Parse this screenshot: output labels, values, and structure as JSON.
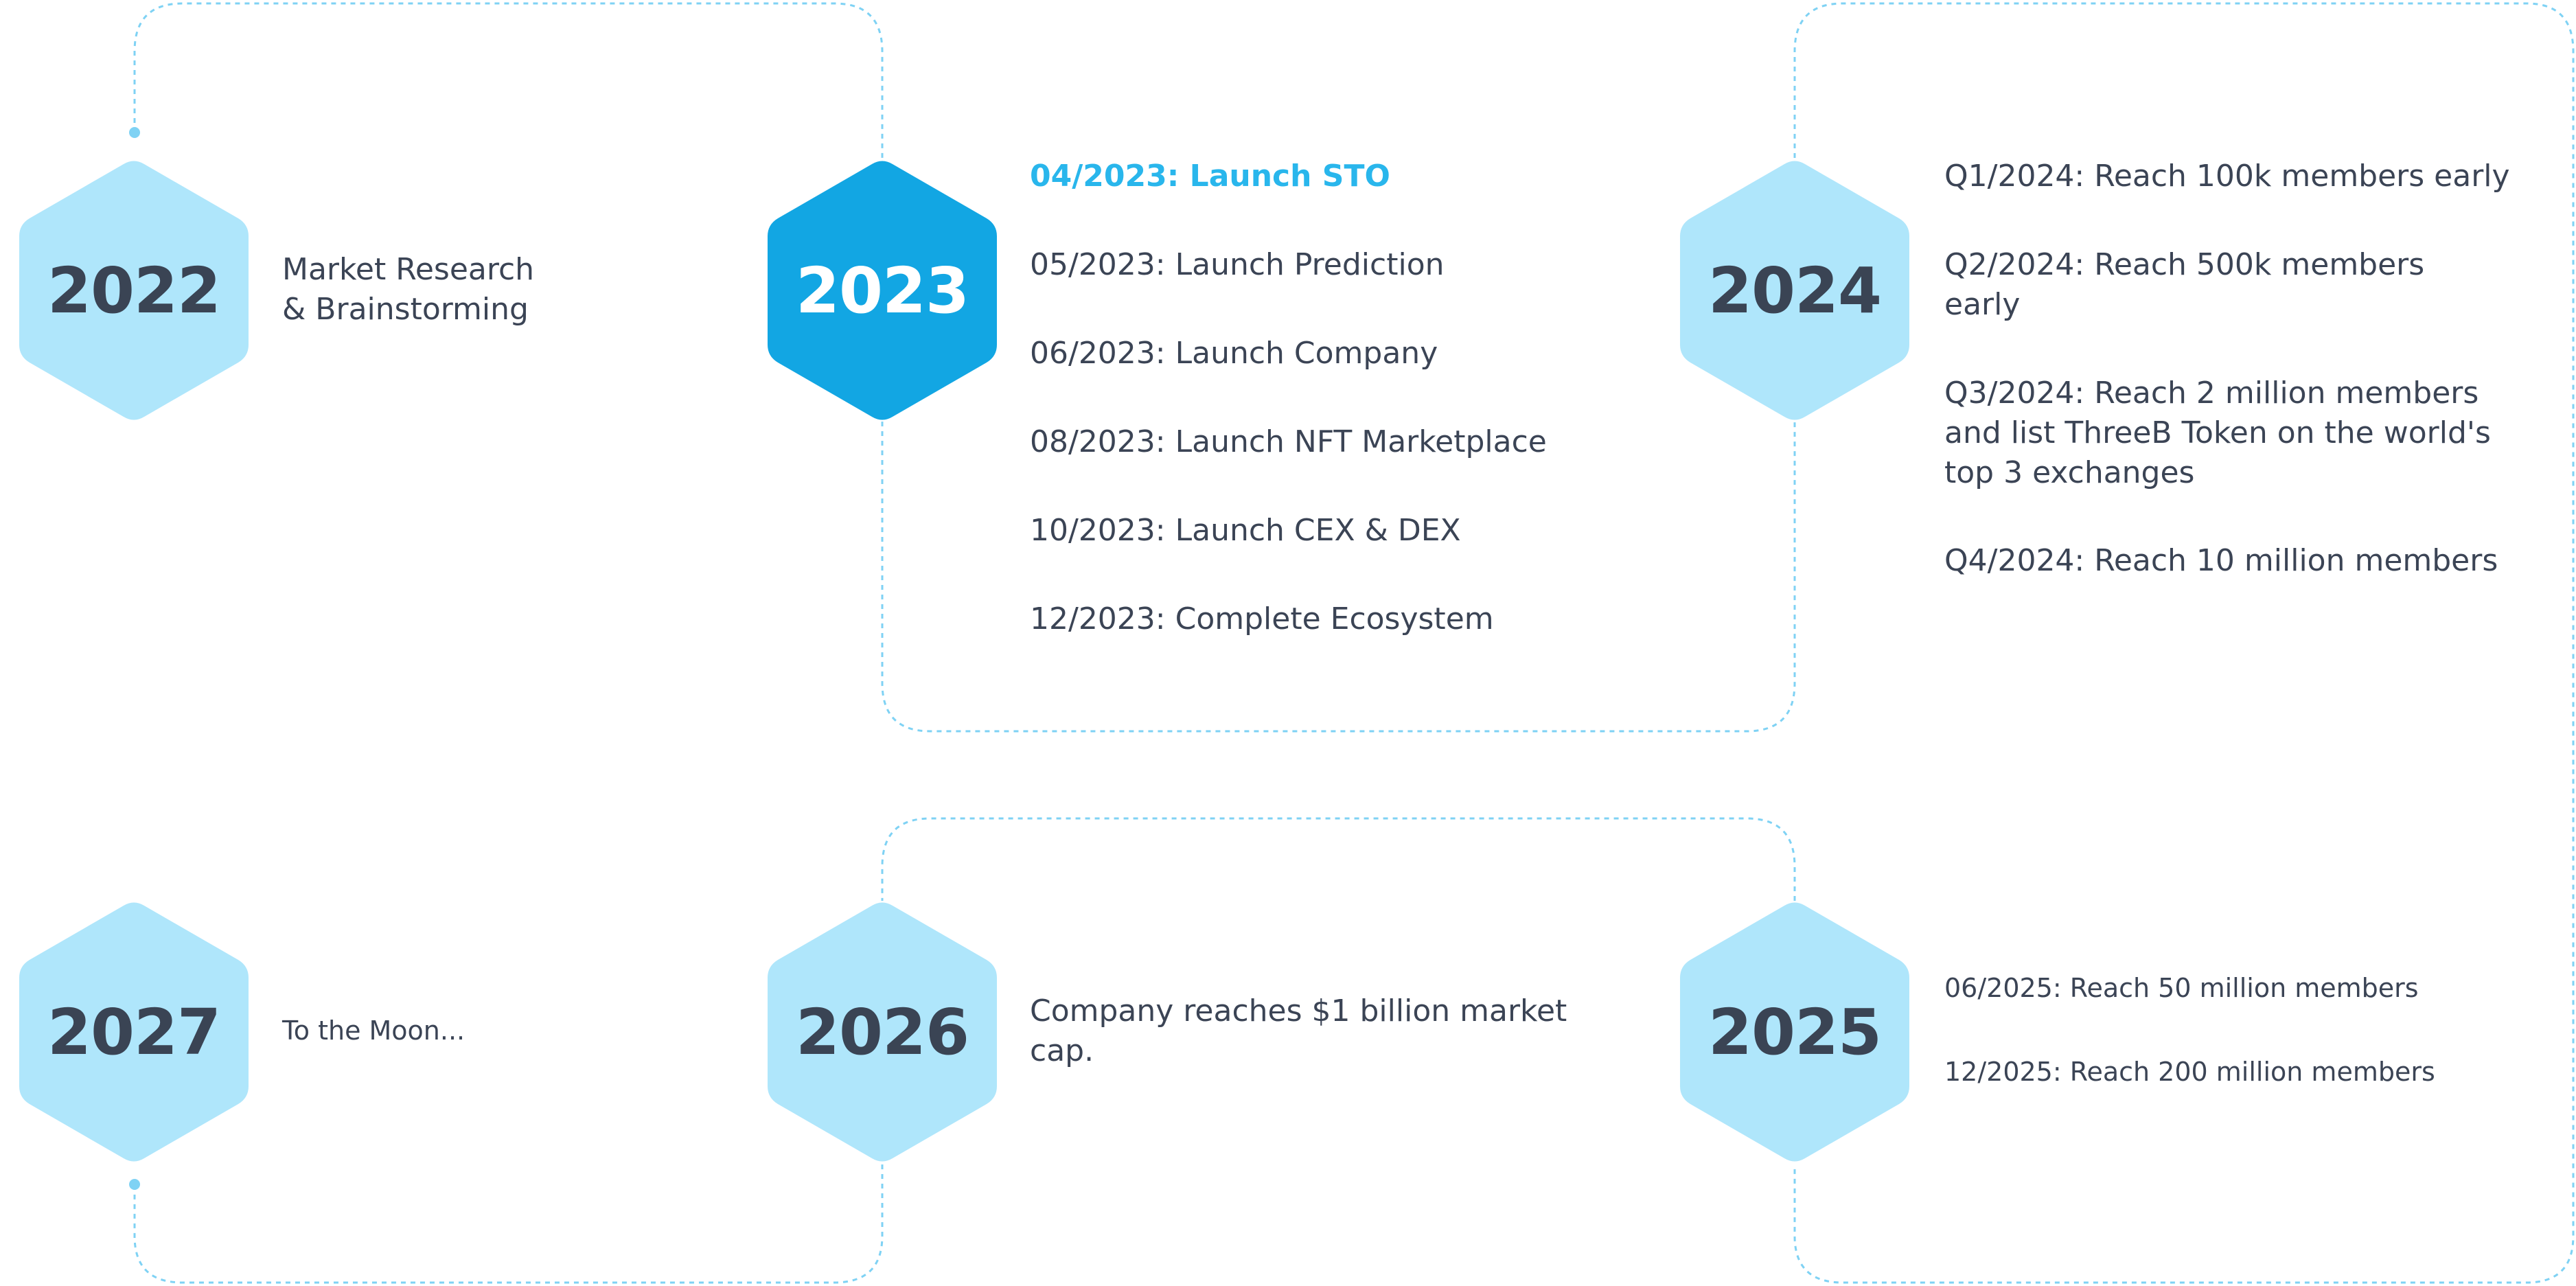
{
  "colors": {
    "hex_light": "#afe6fb",
    "hex_active": "#12a6e3",
    "year_text": "#3a4454",
    "highlight_text": "#29b6ec",
    "body_text": "#3b4455",
    "connector": "#7fd2f4"
  },
  "years": {
    "y2022": "2022",
    "y2023": "2023",
    "y2024": "2024",
    "y2025": "2025",
    "y2026": "2026",
    "y2027": "2027"
  },
  "milestones": {
    "y2022": {
      "line1": "Market Research",
      "line2": "& Brainstorming"
    },
    "y2023": [
      "04/2023: Launch STO",
      "05/2023: Launch Prediction",
      "06/2023: Launch Company",
      "08/2023: Launch NFT Marketplace",
      "10/2023: Launch CEX & DEX",
      "12/2023: Complete Ecosystem"
    ],
    "y2024": [
      {
        "line1": "Q1/2024: Reach 100k members early"
      },
      {
        "line1": "Q2/2024: Reach 500k members",
        "line2": "early"
      },
      {
        "line1": "Q3/2024: Reach 2 million members",
        "line2": "and list ThreeB Token on the world's",
        "line3": "top 3 exchanges"
      },
      {
        "line1": "Q4/2024: Reach 10 million members"
      }
    ],
    "y2025": [
      "06/2025: Reach 50 million members",
      "12/2025: Reach 200 million members"
    ],
    "y2026": {
      "line1": "Company reaches $1 billion market",
      "line2": "cap."
    },
    "y2027": "To the Moon..."
  }
}
